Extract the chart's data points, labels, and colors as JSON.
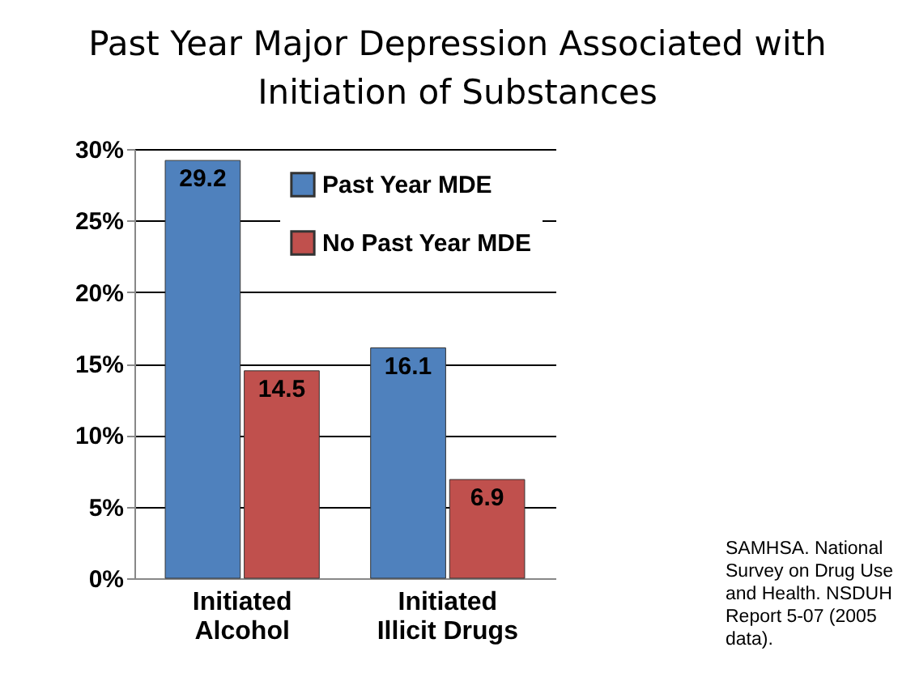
{
  "chart_data": {
    "type": "bar",
    "title": "Past Year Major Depression Associated with Initiation of Substances",
    "categories": [
      "Initiated Alcohol",
      "Initiated Illicit Drugs"
    ],
    "series": [
      {
        "name": "Past Year MDE",
        "color": "#4f81bd",
        "values": [
          29.2,
          16.1
        ]
      },
      {
        "name": "No Past Year MDE",
        "color": "#c0504d",
        "values": [
          14.5,
          6.9
        ]
      }
    ],
    "ylim": [
      0,
      30
    ],
    "yticks": [
      {
        "value": 0,
        "label": "0%"
      },
      {
        "value": 5,
        "label": "5%"
      },
      {
        "value": 10,
        "label": "10%"
      },
      {
        "value": 15,
        "label": "15%"
      },
      {
        "value": 20,
        "label": "20%"
      },
      {
        "value": 25,
        "label": "25%"
      },
      {
        "value": 30,
        "label": "30%"
      }
    ],
    "grid": "y",
    "legend": "top right",
    "data_labels": true,
    "annotations": [
      "SAMHSA. National Survey on Drug Use and Health. NSDUH Report 5-07 (2005 data)."
    ]
  }
}
